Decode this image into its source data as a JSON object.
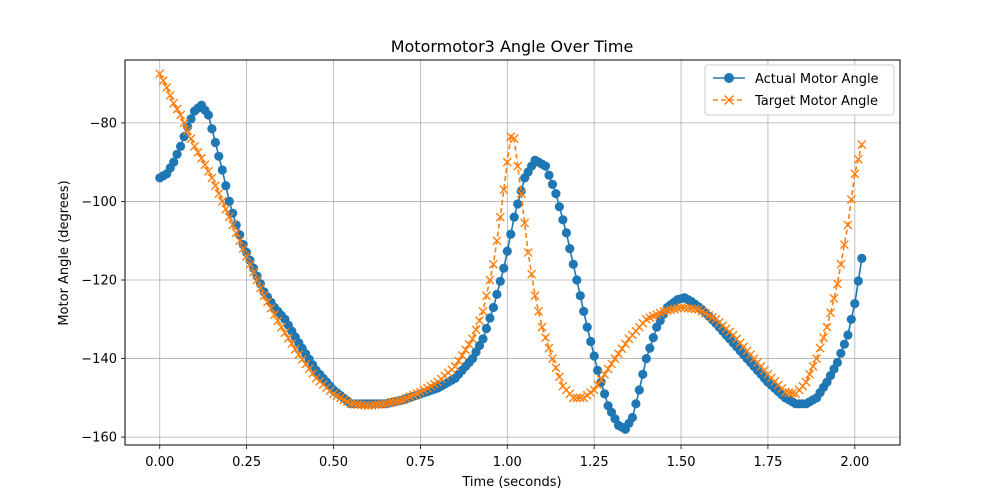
{
  "chart_data": {
    "type": "line",
    "title": "Motormotor3 Angle Over Time",
    "xlabel": "Time (seconds)",
    "ylabel": "Motor Angle (degrees)",
    "xlim": [
      -0.1,
      2.13
    ],
    "ylim": [
      -162,
      -64
    ],
    "x_ticks": [
      0.0,
      0.25,
      0.5,
      0.75,
      1.0,
      1.25,
      1.5,
      1.75,
      2.0
    ],
    "x_tick_labels": [
      "0.00",
      "0.25",
      "0.50",
      "0.75",
      "1.00",
      "1.25",
      "1.50",
      "1.75",
      "2.00"
    ],
    "y_ticks": [
      -80,
      -100,
      -120,
      -140,
      -160
    ],
    "y_tick_labels": [
      "−80",
      "−100",
      "−120",
      "−140",
      "−160"
    ],
    "grid": true,
    "legend_position": "top-right",
    "series": [
      {
        "name": "Actual Motor Angle",
        "color": "#1f77b4",
        "marker": "circle",
        "linestyle": "solid",
        "x": [
          0.0,
          0.02,
          0.04,
          0.06,
          0.08,
          0.1,
          0.12,
          0.14,
          0.16,
          0.18,
          0.2,
          0.22,
          0.24,
          0.26,
          0.28,
          0.3,
          0.33,
          0.36,
          0.4,
          0.45,
          0.5,
          0.55,
          0.6,
          0.65,
          0.7,
          0.75,
          0.8,
          0.85,
          0.9,
          0.93,
          0.96,
          0.99,
          1.02,
          1.05,
          1.08,
          1.11,
          1.14,
          1.17,
          1.2,
          1.23,
          1.26,
          1.29,
          1.32,
          1.34,
          1.36,
          1.38,
          1.4,
          1.43,
          1.46,
          1.49,
          1.51,
          1.53,
          1.56,
          1.6,
          1.65,
          1.7,
          1.75,
          1.8,
          1.83,
          1.86,
          1.89,
          1.92,
          1.95,
          1.98,
          2.0,
          2.02
        ],
        "y": [
          -94,
          -93,
          -90,
          -86,
          -81,
          -77,
          -75.5,
          -78,
          -85,
          -92,
          -100,
          -106,
          -111,
          -115,
          -119,
          -123,
          -127,
          -130,
          -136,
          -143,
          -148,
          -151.5,
          -151.5,
          -151.5,
          -150.5,
          -149,
          -147.5,
          -145,
          -140,
          -135,
          -127,
          -117,
          -104,
          -94,
          -89.5,
          -91,
          -98,
          -108,
          -120,
          -132,
          -143,
          -152,
          -157,
          -158,
          -155,
          -148,
          -140,
          -132,
          -127,
          -125,
          -124.5,
          -125.5,
          -127.5,
          -131,
          -136,
          -141,
          -146,
          -150,
          -151.5,
          -151.5,
          -150,
          -146,
          -141,
          -134,
          -126,
          -114.5
        ]
      },
      {
        "name": "Target Motor Angle",
        "color": "#ff7f0e",
        "marker": "x",
        "linestyle": "dashed",
        "x": [
          0.0,
          0.02,
          0.04,
          0.06,
          0.08,
          0.1,
          0.12,
          0.15,
          0.2,
          0.25,
          0.3,
          0.35,
          0.4,
          0.45,
          0.5,
          0.55,
          0.6,
          0.65,
          0.7,
          0.75,
          0.8,
          0.85,
          0.9,
          0.93,
          0.96,
          0.98,
          1.0,
          1.01,
          1.02,
          1.04,
          1.06,
          1.08,
          1.1,
          1.13,
          1.16,
          1.19,
          1.22,
          1.25,
          1.28,
          1.31,
          1.35,
          1.4,
          1.45,
          1.5,
          1.55,
          1.6,
          1.65,
          1.7,
          1.75,
          1.8,
          1.83,
          1.86,
          1.89,
          1.92,
          1.95,
          1.98,
          2.0,
          2.02
        ],
        "y": [
          -67.5,
          -71,
          -75,
          -78,
          -82,
          -86,
          -89,
          -94,
          -104,
          -114,
          -124,
          -132,
          -139,
          -145,
          -149,
          -151.5,
          -152,
          -151.5,
          -150.5,
          -148.5,
          -146,
          -142,
          -135,
          -128,
          -116,
          -104,
          -90,
          -83.5,
          -84,
          -98,
          -113,
          -124,
          -132,
          -140,
          -147,
          -150,
          -150,
          -148,
          -144,
          -140,
          -135,
          -130,
          -128,
          -127,
          -127.5,
          -130,
          -134,
          -139,
          -144,
          -148.5,
          -149,
          -146,
          -140,
          -132,
          -121,
          -106,
          -93,
          -85.5
        ]
      }
    ]
  }
}
